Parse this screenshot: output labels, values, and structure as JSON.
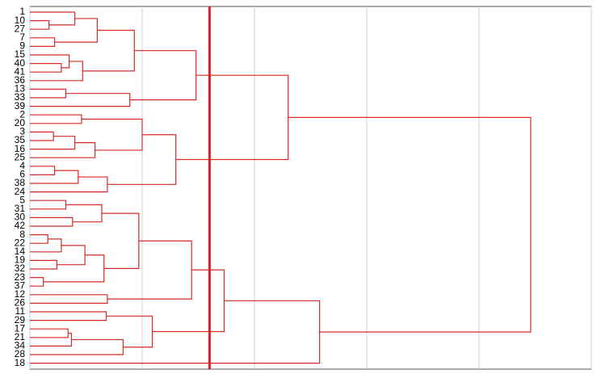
{
  "chart_data": {
    "type": "dendrogram",
    "labels": [
      "1",
      "10",
      "27",
      "7",
      "9",
      "15",
      "40",
      "41",
      "36",
      "13",
      "33",
      "39",
      "2",
      "20",
      "3",
      "35",
      "16",
      "25",
      "4",
      "6",
      "38",
      "24",
      "5",
      "31",
      "30",
      "42",
      "8",
      "22",
      "14",
      "19",
      "32",
      "23",
      "37",
      "12",
      "26",
      "11",
      "29",
      "17",
      "21",
      "34",
      "28",
      "18"
    ],
    "merges": [
      [
        1,
        2,
        0.17
      ],
      [
        0,
        42,
        0.4
      ],
      [
        3,
        4,
        0.22
      ],
      [
        43,
        44,
        0.6
      ],
      [
        6,
        7,
        0.28
      ],
      [
        5,
        46,
        0.35
      ],
      [
        47,
        8,
        0.47
      ],
      [
        45,
        48,
        0.93
      ],
      [
        9,
        10,
        0.32
      ],
      [
        50,
        11,
        0.89
      ],
      [
        49,
        51,
        1.48
      ],
      [
        12,
        13,
        0.46
      ],
      [
        14,
        15,
        0.21
      ],
      [
        54,
        16,
        0.4
      ],
      [
        55,
        17,
        0.58
      ],
      [
        53,
        56,
        1.0
      ],
      [
        18,
        19,
        0.22
      ],
      [
        58,
        20,
        0.43
      ],
      [
        59,
        21,
        0.69
      ],
      [
        57,
        60,
        1.3
      ],
      [
        52,
        61,
        2.3
      ],
      [
        22,
        23,
        0.32
      ],
      [
        24,
        25,
        0.38
      ],
      [
        63,
        64,
        0.64
      ],
      [
        26,
        27,
        0.16
      ],
      [
        66,
        28,
        0.28
      ],
      [
        29,
        30,
        0.24
      ],
      [
        67,
        68,
        0.49
      ],
      [
        31,
        32,
        0.12
      ],
      [
        69,
        70,
        0.66
      ],
      [
        65,
        71,
        0.97
      ],
      [
        33,
        34,
        0.69
      ],
      [
        72,
        73,
        1.44
      ],
      [
        35,
        36,
        0.68
      ],
      [
        37,
        38,
        0.34
      ],
      [
        76,
        39,
        0.37
      ],
      [
        77,
        40,
        0.83
      ],
      [
        75,
        78,
        1.09
      ],
      [
        74,
        79,
        1.73
      ],
      [
        80,
        41,
        2.58
      ],
      [
        62,
        81,
        4.46
      ]
    ],
    "xlim": [
      0,
      5
    ],
    "xticks": [
      0,
      1,
      2,
      3,
      4,
      5
    ],
    "grid": true,
    "color": "#d42a2a",
    "cut": 1.6,
    "cut_color": "#e02020"
  }
}
